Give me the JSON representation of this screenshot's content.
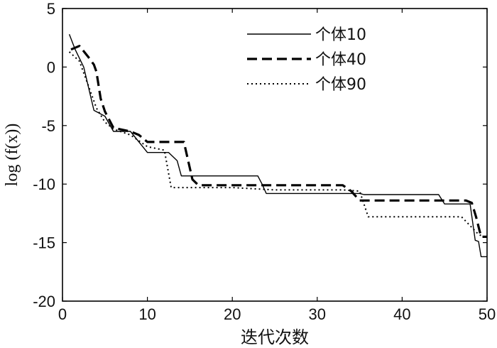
{
  "chart_data": {
    "type": "line",
    "title": "",
    "xlabel": "迭代次数",
    "ylabel": "log (f(x))",
    "xlim": [
      0,
      50
    ],
    "ylim": [
      -20,
      5
    ],
    "xticks": [
      0,
      10,
      20,
      30,
      40,
      50
    ],
    "yticks": [
      5,
      0,
      -5,
      -10,
      -15,
      -20
    ],
    "grid": false,
    "legend_position": "top-right",
    "series": [
      {
        "name": "个体10",
        "style": "solid",
        "x": [
          0.8,
          1.5,
          2.5,
          3.7,
          5.0,
          6.0,
          8.0,
          10.0,
          12.5,
          13.5,
          14.0,
          15.0,
          16.0,
          20.0,
          23.0,
          23.5,
          24.0,
          30.0,
          35.0,
          35.5,
          40.0,
          44.3,
          45.0,
          47.0,
          48.0,
          48.6,
          49.0,
          49.3,
          50.0
        ],
        "y": [
          2.8,
          1.5,
          0.0,
          -3.7,
          -4.2,
          -5.5,
          -5.5,
          -7.3,
          -7.3,
          -8.0,
          -9.3,
          -9.3,
          -9.3,
          -9.3,
          -9.3,
          -10.0,
          -10.8,
          -10.8,
          -10.8,
          -10.9,
          -10.9,
          -10.9,
          -11.7,
          -11.7,
          -11.7,
          -14.8,
          -14.9,
          -16.2,
          -16.2
        ]
      },
      {
        "name": "个体40",
        "style": "dashed",
        "x": [
          1.0,
          2.0,
          3.0,
          3.7,
          4.0,
          4.5,
          5.0,
          6.0,
          8.0,
          9.0,
          10.0,
          12.0,
          14.3,
          15.3,
          16.0,
          20.0,
          24.0,
          30.0,
          33.0,
          34.0,
          35.0,
          40.0,
          45.0,
          47.5,
          48.2,
          48.7,
          49.3,
          50.0
        ],
        "y": [
          1.5,
          1.8,
          0.9,
          0.2,
          -0.4,
          -2.7,
          -3.8,
          -5.2,
          -5.5,
          -5.8,
          -6.4,
          -6.4,
          -6.4,
          -9.6,
          -10.1,
          -10.1,
          -10.1,
          -10.1,
          -10.1,
          -10.6,
          -11.4,
          -11.4,
          -11.4,
          -11.4,
          -11.6,
          -12.8,
          -14.5,
          -14.5
        ]
      },
      {
        "name": "个体90",
        "style": "dotted",
        "x": [
          0.8,
          2.0,
          3.0,
          4.0,
          5.0,
          6.0,
          8.0,
          10.0,
          12.0,
          12.8,
          13.5,
          16.0,
          20.0,
          25.0,
          30.0,
          33.0,
          35.0,
          36.0,
          37.0,
          45.0,
          47.0,
          49.0,
          50.0
        ],
        "y": [
          1.3,
          0.5,
          -1.5,
          -3.5,
          -4.7,
          -5.3,
          -5.8,
          -6.8,
          -7.1,
          -10.3,
          -10.3,
          -10.3,
          -10.3,
          -10.5,
          -10.5,
          -10.5,
          -10.6,
          -12.8,
          -12.8,
          -12.8,
          -12.8,
          -14.3,
          -14.6
        ]
      }
    ]
  }
}
